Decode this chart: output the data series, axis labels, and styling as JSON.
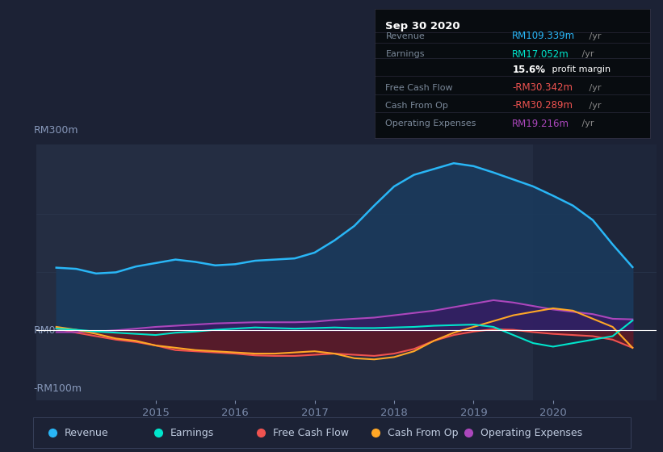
{
  "bg_color": "#1c2235",
  "plot_bg_color": "#242d42",
  "grid_color": "#2e3a52",
  "zero_line_color": "#ffffff",
  "ylabel_300": "RM300m",
  "ylabel_0": "RM0",
  "ylabel_neg100": "-RM100m",
  "xtick_labels": [
    "2015",
    "2016",
    "2017",
    "2018",
    "2019",
    "2020"
  ],
  "ylim": [
    -120,
    320
  ],
  "xlim_min": 2013.5,
  "xlim_max": 2021.3,
  "highlight_x_start": 2019.75,
  "highlight_x_end": 2021.3,
  "highlight_color": "#1a2235",
  "revenue": {
    "color": "#29b6f6",
    "fill_color": "#1a3a5c",
    "data_x": [
      2013.75,
      2014.0,
      2014.25,
      2014.5,
      2014.75,
      2015.0,
      2015.25,
      2015.5,
      2015.75,
      2016.0,
      2016.25,
      2016.5,
      2016.75,
      2017.0,
      2017.25,
      2017.5,
      2017.75,
      2018.0,
      2018.25,
      2018.5,
      2018.75,
      2019.0,
      2019.25,
      2019.5,
      2019.75,
      2020.0,
      2020.25,
      2020.5,
      2020.75,
      2021.0
    ],
    "data_y": [
      108,
      106,
      98,
      100,
      110,
      116,
      122,
      118,
      112,
      114,
      120,
      122,
      124,
      134,
      155,
      180,
      215,
      248,
      268,
      278,
      288,
      283,
      272,
      260,
      248,
      232,
      215,
      190,
      148,
      109
    ]
  },
  "earnings": {
    "color": "#00e5cc",
    "data_x": [
      2013.75,
      2014.0,
      2014.25,
      2014.5,
      2014.75,
      2015.0,
      2015.25,
      2015.5,
      2015.75,
      2016.0,
      2016.25,
      2016.5,
      2016.75,
      2017.0,
      2017.25,
      2017.5,
      2017.75,
      2018.0,
      2018.25,
      2018.5,
      2018.75,
      2019.0,
      2019.25,
      2019.5,
      2019.75,
      2020.0,
      2020.25,
      2020.5,
      2020.75,
      2021.0
    ],
    "data_y": [
      3,
      1,
      -2,
      -4,
      -6,
      -8,
      -4,
      -2,
      1,
      3,
      5,
      4,
      3,
      4,
      5,
      4,
      4,
      5,
      6,
      8,
      9,
      10,
      6,
      -8,
      -22,
      -28,
      -22,
      -16,
      -10,
      17
    ]
  },
  "free_cash_flow": {
    "color": "#ef5350",
    "fill_color": "#5c1a28",
    "data_x": [
      2013.75,
      2014.0,
      2014.25,
      2014.5,
      2014.75,
      2015.0,
      2015.25,
      2015.5,
      2015.75,
      2016.0,
      2016.25,
      2016.5,
      2016.75,
      2017.0,
      2017.25,
      2017.5,
      2017.75,
      2018.0,
      2018.25,
      2018.5,
      2018.75,
      2019.0,
      2019.25,
      2019.5,
      2019.75,
      2020.0,
      2020.25,
      2020.5,
      2020.75,
      2021.0
    ],
    "data_y": [
      3,
      -4,
      -10,
      -16,
      -20,
      -26,
      -34,
      -36,
      -38,
      -40,
      -43,
      -44,
      -44,
      -42,
      -40,
      -42,
      -44,
      -40,
      -32,
      -18,
      -8,
      -2,
      2,
      1,
      -3,
      -6,
      -8,
      -10,
      -16,
      -30
    ]
  },
  "cash_from_op": {
    "color": "#ffa726",
    "data_x": [
      2013.75,
      2014.0,
      2014.25,
      2014.5,
      2014.75,
      2015.0,
      2015.25,
      2015.5,
      2015.75,
      2016.0,
      2016.25,
      2016.5,
      2016.75,
      2017.0,
      2017.25,
      2017.5,
      2017.75,
      2018.0,
      2018.25,
      2018.5,
      2018.75,
      2019.0,
      2019.25,
      2019.5,
      2019.75,
      2020.0,
      2020.25,
      2020.5,
      2020.75,
      2021.0
    ],
    "data_y": [
      6,
      1,
      -6,
      -14,
      -18,
      -26,
      -30,
      -34,
      -36,
      -38,
      -40,
      -40,
      -38,
      -36,
      -40,
      -48,
      -50,
      -46,
      -36,
      -18,
      -4,
      6,
      16,
      26,
      32,
      38,
      34,
      20,
      6,
      -30
    ]
  },
  "operating_expenses": {
    "color": "#ab47bc",
    "fill_color": "#3d1466",
    "data_x": [
      2013.75,
      2014.0,
      2014.25,
      2014.5,
      2014.75,
      2015.0,
      2015.25,
      2015.5,
      2015.75,
      2016.0,
      2016.25,
      2016.5,
      2016.75,
      2017.0,
      2017.25,
      2017.5,
      2017.75,
      2018.0,
      2018.25,
      2018.5,
      2018.75,
      2019.0,
      2019.25,
      2019.5,
      2019.75,
      2020.0,
      2020.25,
      2020.5,
      2020.75,
      2021.0
    ],
    "data_y": [
      -3,
      -3,
      -2,
      0,
      3,
      6,
      8,
      10,
      12,
      13,
      14,
      14,
      14,
      15,
      18,
      20,
      22,
      26,
      30,
      34,
      40,
      46,
      52,
      48,
      42,
      36,
      32,
      28,
      20,
      19
    ]
  },
  "legend_items": [
    {
      "label": "Revenue",
      "color": "#29b6f6"
    },
    {
      "label": "Earnings",
      "color": "#00e5cc"
    },
    {
      "label": "Free Cash Flow",
      "color": "#ef5350"
    },
    {
      "label": "Cash From Op",
      "color": "#ffa726"
    },
    {
      "label": "Operating Expenses",
      "color": "#ab47bc"
    }
  ],
  "info_box": {
    "title": "Sep 30 2020",
    "title_color": "#ffffff",
    "bg_color": "#080c10",
    "border_color": "#333344",
    "rows": [
      {
        "label": "Revenue",
        "val1": "RM109.339m",
        "val1_color": "#29b6f6",
        "val2": " /yr",
        "val2_color": "#888888"
      },
      {
        "label": "Earnings",
        "val1": "RM17.052m",
        "val1_color": "#00e5cc",
        "val2": " /yr",
        "val2_color": "#888888"
      },
      {
        "label": "",
        "val1": "15.6%",
        "val1_color": "#ffffff",
        "val2": " profit margin",
        "val2_color": "#ffffff"
      },
      {
        "label": "Free Cash Flow",
        "val1": "-RM30.342m",
        "val1_color": "#ef5350",
        "val2": " /yr",
        "val2_color": "#888888"
      },
      {
        "label": "Cash From Op",
        "val1": "-RM30.289m",
        "val1_color": "#ef5350",
        "val2": " /yr",
        "val2_color": "#888888"
      },
      {
        "label": "Operating Expenses",
        "val1": "RM19.216m",
        "val1_color": "#ab47bc",
        "val2": " /yr",
        "val2_color": "#888888"
      }
    ]
  }
}
